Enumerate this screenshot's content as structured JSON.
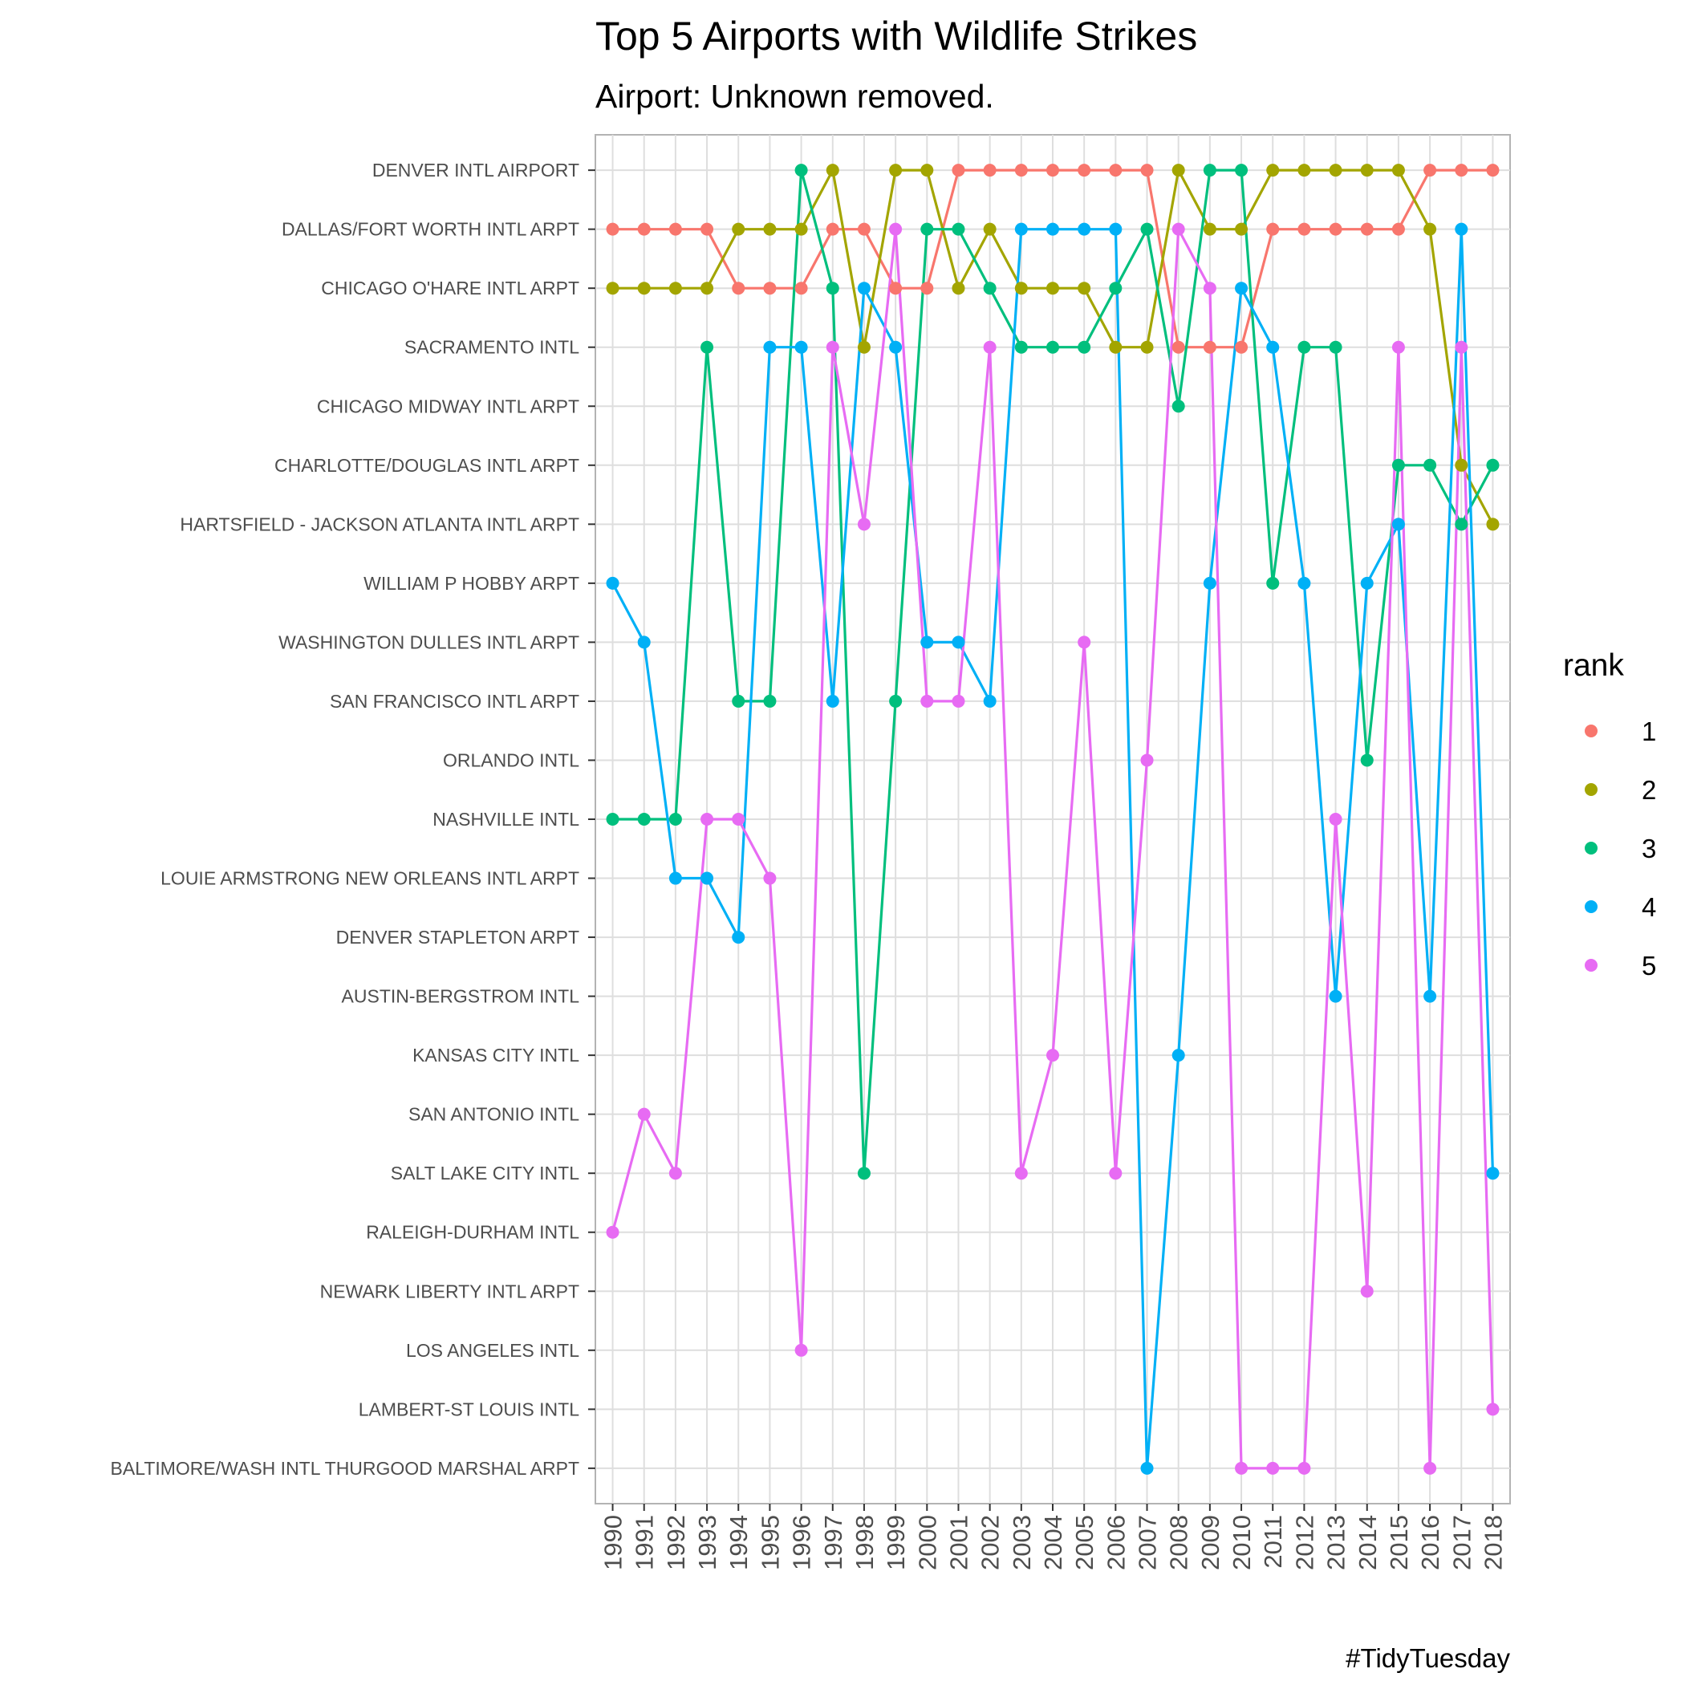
{
  "chart_data": {
    "type": "line",
    "title": "Top 5 Airports with Wildlife Strikes",
    "subtitle": "Airport: Unknown removed.",
    "caption": "#TidyTuesday",
    "xlabel": "",
    "ylabel": "",
    "x": [
      1990,
      1991,
      1992,
      1993,
      1994,
      1995,
      1996,
      1997,
      1998,
      1999,
      2000,
      2001,
      2002,
      2003,
      2004,
      2005,
      2006,
      2007,
      2008,
      2009,
      2010,
      2011,
      2012,
      2013,
      2014,
      2015,
      2016,
      2017,
      2018
    ],
    "airports": [
      "DENVER INTL AIRPORT",
      "DALLAS/FORT WORTH INTL ARPT",
      "CHICAGO O'HARE INTL ARPT",
      "SACRAMENTO INTL",
      "CHICAGO MIDWAY INTL ARPT",
      "CHARLOTTE/DOUGLAS INTL ARPT",
      "HARTSFIELD - JACKSON ATLANTA INTL ARPT",
      "WILLIAM P HOBBY ARPT",
      "WASHINGTON DULLES INTL ARPT",
      "SAN FRANCISCO INTL ARPT",
      "ORLANDO INTL",
      "NASHVILLE INTL",
      "LOUIE ARMSTRONG NEW ORLEANS INTL ARPT",
      "DENVER STAPLETON ARPT",
      "AUSTIN-BERGSTROM INTL",
      "KANSAS CITY INTL",
      "SAN ANTONIO INTL",
      "SALT LAKE CITY INTL",
      "RALEIGH-DURHAM INTL",
      "NEWARK LIBERTY INTL ARPT",
      "LOS ANGELES INTL",
      "LAMBERT-ST LOUIS INTL",
      "BALTIMORE/WASH INTL THURGOOD MARSHAL ARPT"
    ],
    "legend": {
      "title": "rank",
      "position": "right"
    },
    "grid": true,
    "series": [
      {
        "name": "1",
        "color": "#F8766D",
        "values": [
          "DALLAS/FORT WORTH INTL ARPT",
          "DALLAS/FORT WORTH INTL ARPT",
          "DALLAS/FORT WORTH INTL ARPT",
          "DALLAS/FORT WORTH INTL ARPT",
          "CHICAGO O'HARE INTL ARPT",
          "CHICAGO O'HARE INTL ARPT",
          "CHICAGO O'HARE INTL ARPT",
          "DALLAS/FORT WORTH INTL ARPT",
          "DALLAS/FORT WORTH INTL ARPT",
          "CHICAGO O'HARE INTL ARPT",
          "CHICAGO O'HARE INTL ARPT",
          "DENVER INTL AIRPORT",
          "DENVER INTL AIRPORT",
          "DENVER INTL AIRPORT",
          "DENVER INTL AIRPORT",
          "DENVER INTL AIRPORT",
          "DENVER INTL AIRPORT",
          "DENVER INTL AIRPORT",
          "SACRAMENTO INTL",
          "SACRAMENTO INTL",
          "SACRAMENTO INTL",
          "DALLAS/FORT WORTH INTL ARPT",
          "DALLAS/FORT WORTH INTL ARPT",
          "DALLAS/FORT WORTH INTL ARPT",
          "DALLAS/FORT WORTH INTL ARPT",
          "DALLAS/FORT WORTH INTL ARPT",
          "DENVER INTL AIRPORT",
          "DENVER INTL AIRPORT",
          "DENVER INTL AIRPORT"
        ]
      },
      {
        "name": "2",
        "color": "#A3A500",
        "values": [
          "CHICAGO O'HARE INTL ARPT",
          "CHICAGO O'HARE INTL ARPT",
          "CHICAGO O'HARE INTL ARPT",
          "CHICAGO O'HARE INTL ARPT",
          "DALLAS/FORT WORTH INTL ARPT",
          "DALLAS/FORT WORTH INTL ARPT",
          "DALLAS/FORT WORTH INTL ARPT",
          "DENVER INTL AIRPORT",
          "SACRAMENTO INTL",
          "DENVER INTL AIRPORT",
          "DENVER INTL AIRPORT",
          "CHICAGO O'HARE INTL ARPT",
          "DALLAS/FORT WORTH INTL ARPT",
          "CHICAGO O'HARE INTL ARPT",
          "CHICAGO O'HARE INTL ARPT",
          "CHICAGO O'HARE INTL ARPT",
          "SACRAMENTO INTL",
          "SACRAMENTO INTL",
          "DENVER INTL AIRPORT",
          "DALLAS/FORT WORTH INTL ARPT",
          "DALLAS/FORT WORTH INTL ARPT",
          "DENVER INTL AIRPORT",
          "DENVER INTL AIRPORT",
          "DENVER INTL AIRPORT",
          "DENVER INTL AIRPORT",
          "DENVER INTL AIRPORT",
          "DALLAS/FORT WORTH INTL ARPT",
          "CHARLOTTE/DOUGLAS INTL ARPT",
          "HARTSFIELD - JACKSON ATLANTA INTL ARPT"
        ]
      },
      {
        "name": "3",
        "color": "#00BF7D",
        "values": [
          "NASHVILLE INTL",
          "NASHVILLE INTL",
          "NASHVILLE INTL",
          "SACRAMENTO INTL",
          "SAN FRANCISCO INTL ARPT",
          "SAN FRANCISCO INTL ARPT",
          "DENVER INTL AIRPORT",
          "CHICAGO O'HARE INTL ARPT",
          "SALT LAKE CITY INTL",
          "SAN FRANCISCO INTL ARPT",
          "DALLAS/FORT WORTH INTL ARPT",
          "DALLAS/FORT WORTH INTL ARPT",
          "CHICAGO O'HARE INTL ARPT",
          "SACRAMENTO INTL",
          "SACRAMENTO INTL",
          "SACRAMENTO INTL",
          "CHICAGO O'HARE INTL ARPT",
          "DALLAS/FORT WORTH INTL ARPT",
          "CHICAGO MIDWAY INTL ARPT",
          "DENVER INTL AIRPORT",
          "DENVER INTL AIRPORT",
          "WILLIAM P HOBBY ARPT",
          "SACRAMENTO INTL",
          "SACRAMENTO INTL",
          "ORLANDO INTL",
          "CHARLOTTE/DOUGLAS INTL ARPT",
          "CHARLOTTE/DOUGLAS INTL ARPT",
          "HARTSFIELD - JACKSON ATLANTA INTL ARPT",
          "CHARLOTTE/DOUGLAS INTL ARPT"
        ]
      },
      {
        "name": "4",
        "color": "#00B0F6",
        "values": [
          "WILLIAM P HOBBY ARPT",
          "WASHINGTON DULLES INTL ARPT",
          "LOUIE ARMSTRONG NEW ORLEANS INTL ARPT",
          "LOUIE ARMSTRONG NEW ORLEANS INTL ARPT",
          "DENVER STAPLETON ARPT",
          "SACRAMENTO INTL",
          "SACRAMENTO INTL",
          "SAN FRANCISCO INTL ARPT",
          "CHICAGO O'HARE INTL ARPT",
          "SACRAMENTO INTL",
          "WASHINGTON DULLES INTL ARPT",
          "WASHINGTON DULLES INTL ARPT",
          "SAN FRANCISCO INTL ARPT",
          "DALLAS/FORT WORTH INTL ARPT",
          "DALLAS/FORT WORTH INTL ARPT",
          "DALLAS/FORT WORTH INTL ARPT",
          "DALLAS/FORT WORTH INTL ARPT",
          "BALTIMORE/WASH INTL THURGOOD MARSHAL ARPT",
          "KANSAS CITY INTL",
          "WILLIAM P HOBBY ARPT",
          "CHICAGO O'HARE INTL ARPT",
          "SACRAMENTO INTL",
          "WILLIAM P HOBBY ARPT",
          "AUSTIN-BERGSTROM INTL",
          "WILLIAM P HOBBY ARPT",
          "HARTSFIELD - JACKSON ATLANTA INTL ARPT",
          "AUSTIN-BERGSTROM INTL",
          "DALLAS/FORT WORTH INTL ARPT",
          "SALT LAKE CITY INTL"
        ]
      },
      {
        "name": "5",
        "color": "#E76BF3",
        "values": [
          "RALEIGH-DURHAM INTL",
          "SAN ANTONIO INTL",
          "SALT LAKE CITY INTL",
          "NASHVILLE INTL",
          "NASHVILLE INTL",
          "LOUIE ARMSTRONG NEW ORLEANS INTL ARPT",
          "LOS ANGELES INTL",
          "SACRAMENTO INTL",
          "HARTSFIELD - JACKSON ATLANTA INTL ARPT",
          "DALLAS/FORT WORTH INTL ARPT",
          "SAN FRANCISCO INTL ARPT",
          "SAN FRANCISCO INTL ARPT",
          "SACRAMENTO INTL",
          "SALT LAKE CITY INTL",
          "KANSAS CITY INTL",
          "WASHINGTON DULLES INTL ARPT",
          "SALT LAKE CITY INTL",
          "ORLANDO INTL",
          "DALLAS/FORT WORTH INTL ARPT",
          "CHICAGO O'HARE INTL ARPT",
          "BALTIMORE/WASH INTL THURGOOD MARSHAL ARPT",
          "BALTIMORE/WASH INTL THURGOOD MARSHAL ARPT",
          "BALTIMORE/WASH INTL THURGOOD MARSHAL ARPT",
          "NASHVILLE INTL",
          "NEWARK LIBERTY INTL ARPT",
          "SACRAMENTO INTL",
          "BALTIMORE/WASH INTL THURGOOD MARSHAL ARPT",
          "SACRAMENTO INTL",
          "LAMBERT-ST LOUIS INTL"
        ]
      }
    ]
  }
}
